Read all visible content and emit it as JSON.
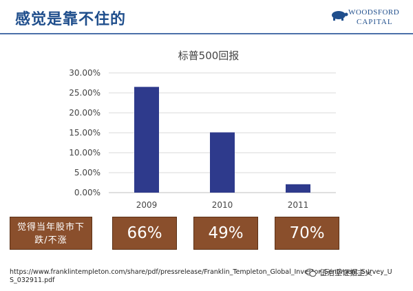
{
  "header": {
    "title": "感觉是靠不住的"
  },
  "logo": {
    "line1": "WOODSFORD",
    "line2": "CAPITAL"
  },
  "chart_data": {
    "type": "bar",
    "title": "标普500回报",
    "categories": [
      "2009",
      "2010",
      "2011"
    ],
    "values": [
      26.5,
      15.1,
      2.1
    ],
    "ylim": [
      0,
      30
    ],
    "yticks": [
      "0.00%",
      "5.00%",
      "10.00%",
      "15.00%",
      "20.00%",
      "25.00%",
      "30.00%"
    ],
    "ytick_values": [
      0,
      5,
      10,
      15,
      20,
      25,
      30
    ],
    "xlabel": "",
    "ylabel": "",
    "grid": true,
    "bar_color": "#2e3a8c"
  },
  "survey": {
    "label": "觉得当年股市下跌/不涨",
    "label_line1": "觉得当年股市下",
    "label_line2": "跌/不涨",
    "values": [
      "66%",
      "49%",
      "70%"
    ]
  },
  "source": {
    "url": "https://www.franklintempleton.com/share/pdf/pressrelease/Franklin_Templeton_Global_Investor_Sentiment_Survey_US_032911.pdf"
  },
  "watermark": {
    "text": "伍治坚证据主义"
  }
}
